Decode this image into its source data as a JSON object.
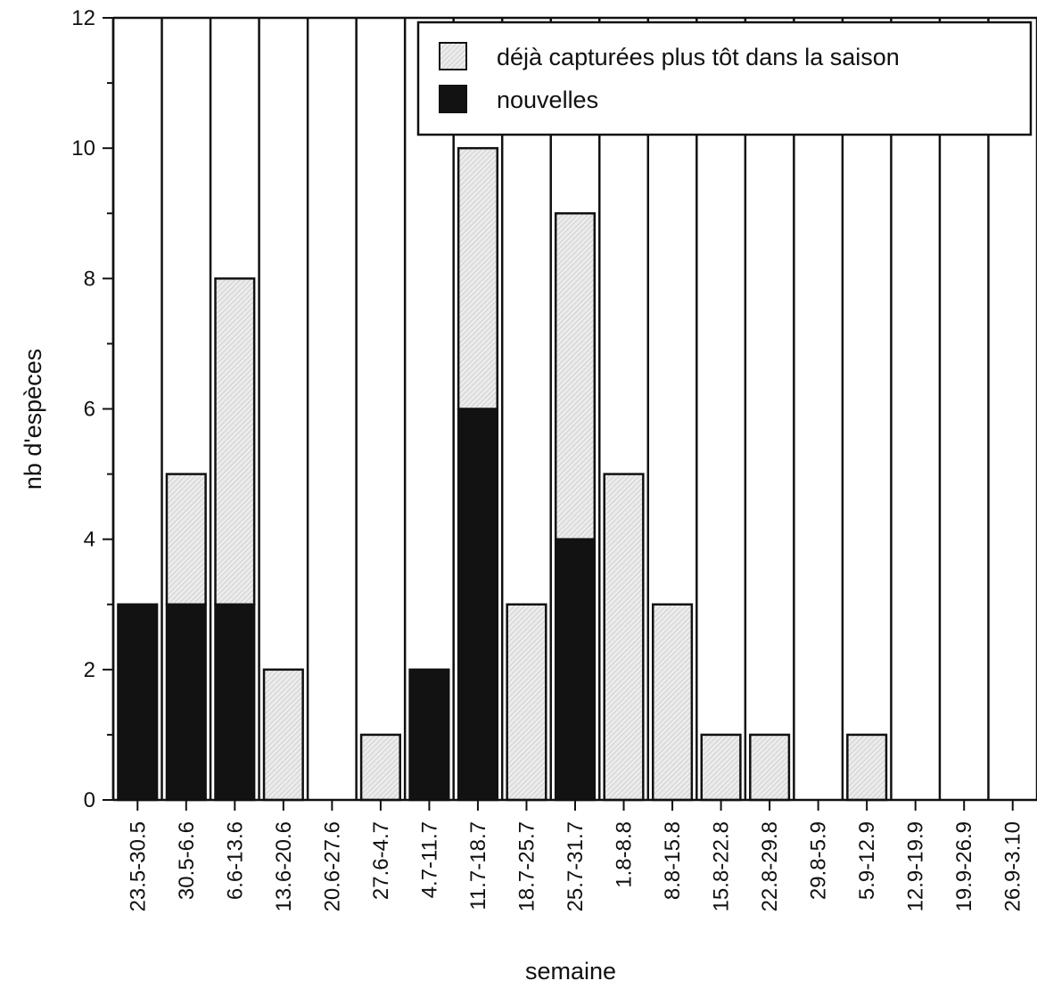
{
  "chart_data": {
    "type": "bar",
    "stacked": true,
    "title": "",
    "xlabel": "semaine",
    "ylabel": "nb d'espèces",
    "ylim": [
      0,
      12
    ],
    "yticks": [
      0,
      2,
      4,
      6,
      8,
      10,
      12
    ],
    "grid": "vertical lines between categories",
    "legend_position": "top-right",
    "categories": [
      "23.5-30.5",
      "30.5-6.6",
      "6.6-13.6",
      "13.6-20.6",
      "20.6-27.6",
      "27.6-4.7",
      "4.7-11.7",
      "11.7-18.7",
      "18.7-25.7",
      "25.7-31.7",
      "1.8-8.8",
      "8.8-15.8",
      "15.8-22.8",
      "22.8-29.8",
      "29.8-5.9",
      "5.9-12.9",
      "12.9-19.9",
      "19.9-26.9",
      "26.9-3.10"
    ],
    "series": [
      {
        "name": "nouvelles",
        "color": "#111111",
        "pattern": "solid",
        "values": [
          3,
          3,
          3,
          0,
          0,
          0,
          2,
          6,
          0,
          4,
          0,
          0,
          0,
          0,
          0,
          0,
          0,
          0,
          0
        ]
      },
      {
        "name": "déjà capturées plus tôt dans la saison",
        "color": "#e6e6e6",
        "pattern": "hatched",
        "values": [
          0,
          2,
          5,
          2,
          0,
          1,
          0,
          4,
          3,
          5,
          5,
          3,
          1,
          1,
          0,
          1,
          0,
          0,
          0
        ]
      }
    ]
  }
}
